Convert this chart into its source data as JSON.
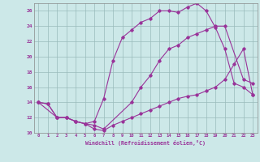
{
  "xlabel": "Windchill (Refroidissement éolien,°C)",
  "bg_color": "#cce8e8",
  "line_color": "#993399",
  "xlim": [
    -0.5,
    23.5
  ],
  "ylim": [
    10,
    27
  ],
  "xticks": [
    0,
    1,
    2,
    3,
    4,
    5,
    6,
    7,
    8,
    9,
    10,
    11,
    12,
    13,
    14,
    15,
    16,
    17,
    18,
    19,
    20,
    21,
    22,
    23
  ],
  "yticks": [
    10,
    12,
    14,
    16,
    18,
    20,
    22,
    24,
    26
  ],
  "series1_x": [
    0,
    1,
    2,
    3,
    4,
    5,
    6,
    7,
    8,
    9,
    10,
    11,
    12,
    13,
    14,
    15,
    16,
    17,
    18,
    19,
    20,
    21,
    22,
    23
  ],
  "series1_y": [
    14,
    13.8,
    12,
    12,
    11.5,
    11.2,
    10.5,
    10.3,
    11,
    11.5,
    12,
    12.5,
    13,
    13.5,
    14,
    14.5,
    14.8,
    15,
    15.5,
    16,
    17,
    19,
    21,
    15
  ],
  "series2_x": [
    0,
    1,
    2,
    3,
    4,
    5,
    6,
    7,
    8,
    9,
    10,
    11,
    12,
    13,
    14,
    15,
    16,
    17,
    18,
    19,
    20,
    21,
    22,
    23
  ],
  "series2_y": [
    14,
    13.8,
    12,
    12,
    11.5,
    11.2,
    11.5,
    14.5,
    19.5,
    22.5,
    23.5,
    24.5,
    25,
    26,
    26,
    25.8,
    26.5,
    27,
    26,
    23.8,
    21,
    16.5,
    16,
    15
  ],
  "series3_x": [
    0,
    2,
    3,
    4,
    5,
    6,
    7,
    10,
    11,
    12,
    13,
    14,
    15,
    16,
    17,
    18,
    19,
    20,
    22,
    23
  ],
  "series3_y": [
    14,
    12,
    12,
    11.5,
    11.2,
    11,
    10.5,
    14,
    16,
    17.5,
    19.5,
    21,
    21.5,
    22.5,
    23,
    23.5,
    24,
    24,
    17,
    16.5
  ]
}
